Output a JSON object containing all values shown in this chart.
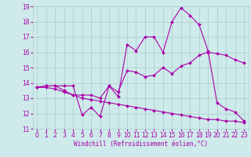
{
  "xlabel": "Windchill (Refroidissement éolien,°C)",
  "background_color": "#ceeaea",
  "grid_color": "#aacccc",
  "line_color": "#aa00aa",
  "xlim": [
    -0.5,
    23.5
  ],
  "ylim": [
    11,
    19
  ],
  "yticks": [
    11,
    12,
    13,
    14,
    15,
    16,
    17,
    18,
    19
  ],
  "xticks": [
    0,
    1,
    2,
    3,
    4,
    5,
    6,
    7,
    8,
    9,
    10,
    11,
    12,
    13,
    14,
    15,
    16,
    17,
    18,
    19,
    20,
    21,
    22,
    23
  ],
  "line1_x": [
    0,
    1,
    2,
    3,
    4,
    5,
    6,
    7,
    8,
    9,
    10,
    11,
    12,
    13,
    14,
    15,
    16,
    17,
    18,
    19,
    20,
    21,
    22,
    23
  ],
  "line1_y": [
    13.7,
    13.8,
    13.8,
    13.8,
    13.8,
    11.9,
    12.4,
    11.8,
    13.8,
    13.1,
    16.5,
    16.1,
    17.0,
    17.0,
    16.0,
    18.0,
    18.9,
    18.4,
    17.8,
    16.1,
    12.7,
    12.3,
    12.1,
    11.5
  ],
  "line2_x": [
    0,
    1,
    2,
    3,
    4,
    5,
    6,
    7,
    8,
    9,
    10,
    11,
    12,
    13,
    14,
    15,
    16,
    17,
    18,
    19,
    20,
    21,
    22,
    23
  ],
  "line2_y": [
    13.7,
    13.8,
    13.8,
    13.5,
    13.2,
    13.2,
    13.2,
    13.0,
    13.8,
    13.4,
    14.8,
    14.7,
    14.4,
    14.5,
    15.0,
    14.6,
    15.1,
    15.3,
    15.8,
    16.0,
    15.9,
    15.8,
    15.5,
    15.3
  ],
  "line3_x": [
    0,
    1,
    2,
    3,
    4,
    5,
    6,
    7,
    8,
    9,
    10,
    11,
    12,
    13,
    14,
    15,
    16,
    17,
    18,
    19,
    20,
    21,
    22,
    23
  ],
  "line3_y": [
    13.7,
    13.7,
    13.6,
    13.4,
    13.2,
    13.0,
    12.9,
    12.8,
    12.7,
    12.6,
    12.5,
    12.4,
    12.3,
    12.2,
    12.1,
    12.0,
    11.9,
    11.8,
    11.7,
    11.6,
    11.6,
    11.5,
    11.5,
    11.4
  ],
  "tick_fontsize": 5.5,
  "xlabel_fontsize": 5.5,
  "marker_size": 2.0,
  "line_width": 0.8
}
